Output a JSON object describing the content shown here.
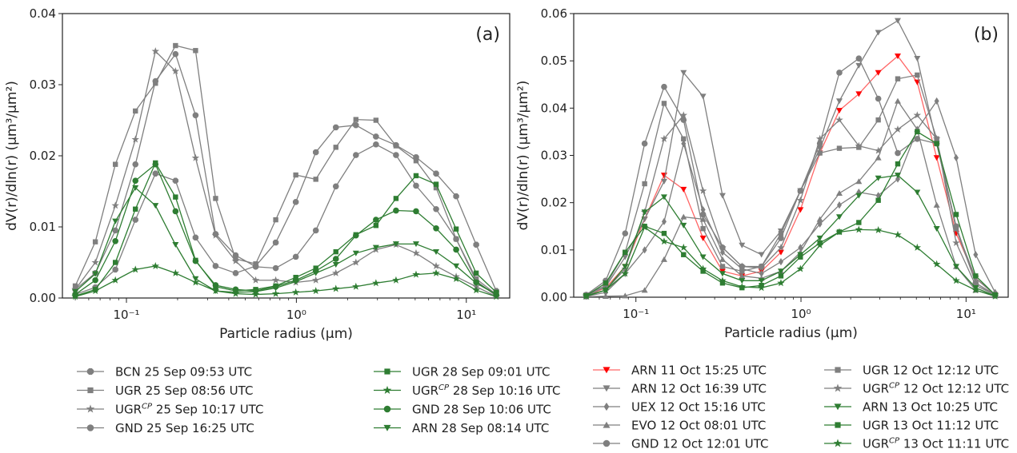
{
  "chart_data": [
    {
      "type": "line",
      "panel_label": "(a)",
      "xlabel": "Particle radius (μm)",
      "ylabel": "dV(r)/dln(r) (μm³/μm²)",
      "xscale": "log",
      "xlim": [
        0.042,
        18
      ],
      "ylim": [
        0,
        0.04
      ],
      "yticks": [
        "0.00",
        "0.01",
        "0.02",
        "0.03",
        "0.04"
      ],
      "xticks": [
        "10⁻¹",
        "10⁰",
        "10¹"
      ],
      "x": [
        0.05,
        0.065604,
        0.086077,
        0.112939,
        0.148184,
        0.194429,
        0.255105,
        0.334716,
        0.439173,
        0.576227,
        0.756052,
        0.991996,
        1.301571,
        1.707757,
        2.240702,
        2.939966,
        3.857452,
        5.06126,
        6.640745,
        8.713145,
        11.432287,
        15.0
      ],
      "legend_columns": 2,
      "legend": [
        [
          "BCN 25 Sep 09:53 UTC",
          "UGR 25 Sep 08:56 UTC",
          "UGR",
          "GND 25 Sep 16:25 UTC"
        ],
        [
          "UGR 28 Sep 09:01 UTC",
          "UGR",
          "GND 28 Sep 10:06 UTC",
          "ARN 28 Sep 08:14 UTC"
        ]
      ],
      "series": [
        {
          "label": "BCN 25 Sep 09:53 UTC",
          "label_sup": "",
          "color": "#7f7f7f",
          "marker": "plus",
          "values": [
            0.0005,
            0.0015,
            0.004,
            0.011,
            0.0175,
            0.0165,
            0.0085,
            0.0045,
            0.0035,
            0.0045,
            0.0078,
            0.0135,
            0.0205,
            0.024,
            0.0243,
            0.0227,
            0.0215,
            0.0198,
            0.0175,
            0.0143,
            0.0075,
            0.001
          ]
        },
        {
          "label": "UGR 25 Sep 08:56 UTC",
          "label_sup": "",
          "color": "#7f7f7f",
          "marker": "square",
          "values": [
            0.0017,
            0.0079,
            0.0188,
            0.0263,
            0.0302,
            0.0355,
            0.0348,
            0.014,
            0.0055,
            0.0048,
            0.011,
            0.0173,
            0.0167,
            0.0212,
            0.0251,
            0.025,
            0.0214,
            0.0193,
            0.0155,
            0.0083,
            0.0027,
            0.0005
          ]
        },
        {
          "label": "UGR",
          "label_sup": "CP",
          "label_rest": " 25 Sep 10:17 UTC",
          "color": "#7f7f7f",
          "marker": "star",
          "values": [
            0.0012,
            0.005,
            0.013,
            0.0223,
            0.0347,
            0.0319,
            0.0197,
            0.0088,
            0.0052,
            0.0025,
            0.0025,
            0.0022,
            0.0025,
            0.0035,
            0.005,
            0.0068,
            0.0075,
            0.0063,
            0.0045,
            0.003,
            0.0016,
            0.0002
          ]
        },
        {
          "label": "GND 25 Sep 16:25 UTC",
          "label_sup": "",
          "color": "#7f7f7f",
          "marker": "circle",
          "values": [
            0.0012,
            0.0035,
            0.0095,
            0.0188,
            0.0305,
            0.0343,
            0.0257,
            0.009,
            0.006,
            0.0044,
            0.0042,
            0.0058,
            0.0095,
            0.0157,
            0.0201,
            0.0216,
            0.0201,
            0.0158,
            0.0125,
            0.0083,
            0.0024,
            0.0003
          ]
        },
        {
          "label": "UGR 28 Sep 09:01 UTC",
          "label_sup": "",
          "color": "#2e7d32",
          "marker": "square",
          "values": [
            0.0003,
            0.0012,
            0.005,
            0.0125,
            0.019,
            0.0142,
            0.0053,
            0.0016,
            0.001,
            0.0012,
            0.0017,
            0.0029,
            0.0042,
            0.0065,
            0.0089,
            0.0102,
            0.014,
            0.0172,
            0.016,
            0.0097,
            0.0035,
            0.0008
          ]
        },
        {
          "label": "UGR",
          "label_sup": "CP",
          "label_rest": " 28 Sep 10:16 UTC",
          "color": "#2e7d32",
          "marker": "star",
          "values": [
            0.0002,
            0.001,
            0.0025,
            0.004,
            0.0045,
            0.0035,
            0.0022,
            0.001,
            0.0006,
            0.0005,
            0.0006,
            0.0008,
            0.001,
            0.0013,
            0.0016,
            0.0021,
            0.0025,
            0.0033,
            0.0035,
            0.0027,
            0.0011,
            0.0002
          ]
        },
        {
          "label": "GND 28 Sep 10:06 UTC",
          "label_sup": "",
          "color": "#2e7d32",
          "marker": "circle",
          "values": [
            0.0005,
            0.0025,
            0.008,
            0.0165,
            0.0188,
            0.0122,
            0.0052,
            0.0018,
            0.0012,
            0.001,
            0.0016,
            0.0025,
            0.0038,
            0.0055,
            0.0088,
            0.011,
            0.0123,
            0.0122,
            0.0098,
            0.0068,
            0.0022,
            0.0005
          ]
        },
        {
          "label": "ARN 28 Sep 08:14 UTC",
          "label_sup": "",
          "color": "#2e7d32",
          "marker": "triangle-down",
          "values": [
            0.0009,
            0.0034,
            0.0108,
            0.0155,
            0.013,
            0.0075,
            0.0027,
            0.001,
            0.0008,
            0.0009,
            0.0014,
            0.0023,
            0.0035,
            0.0047,
            0.0063,
            0.0071,
            0.0076,
            0.0076,
            0.0065,
            0.0045,
            0.0021,
            0.0005
          ]
        }
      ]
    },
    {
      "type": "line",
      "panel_label": "(b)",
      "xlabel": "Particle radius (μm)",
      "ylabel": "dV(r)/dln(r) (μm³/μm²)",
      "xscale": "log",
      "xlim": [
        0.042,
        18
      ],
      "ylim": [
        0,
        0.06
      ],
      "yticks": [
        "0.00",
        "0.01",
        "0.02",
        "0.03",
        "0.04",
        "0.05",
        "0.06"
      ],
      "xticks": [
        "10⁻¹",
        "10⁰",
        "10¹"
      ],
      "x": [
        0.05,
        0.065604,
        0.086077,
        0.112939,
        0.148184,
        0.194429,
        0.255105,
        0.334716,
        0.439173,
        0.576227,
        0.756052,
        0.991996,
        1.301571,
        1.707757,
        2.240702,
        2.939966,
        3.857452,
        5.06126,
        6.640745,
        8.713145,
        11.432287,
        15.0
      ],
      "legend_columns": 2,
      "legend": [
        [
          "ARN 11 Oct 15:25 UTC",
          "ARN 12 Oct 16:39 UTC",
          "UEX 12 Oct 15:16 UTC",
          "EVO 12 Oct 08:01 UTC",
          "GND 12 Oct 12:01 UTC"
        ],
        [
          "UGR 12 Oct 12:12 UTC",
          "UGR",
          "ARN 13 Oct 10:25 UTC",
          "UGR 13 Oct 11:12 UTC",
          "UGR"
        ]
      ],
      "series": [
        {
          "label": "ARN 11 Oct 15:25 UTC",
          "label_sup": "",
          "color": "#ff0000",
          "line": "#ff6666",
          "marker": "triangle-down",
          "values": [
            0.0003,
            0.002,
            0.0065,
            0.0165,
            0.0258,
            0.0228,
            0.0125,
            0.0055,
            0.0045,
            0.0055,
            0.0095,
            0.0185,
            0.0305,
            0.0395,
            0.043,
            0.0475,
            0.051,
            0.0455,
            0.0295,
            0.0135,
            0.004,
            0.0005
          ]
        },
        {
          "label": "ARN 12 Oct 16:39 UTC",
          "label_sup": "",
          "color": "#7f7f7f",
          "marker": "triangle-down",
          "values": [
            0.0003,
            0.0022,
            0.0085,
            0.0165,
            0.0245,
            0.0475,
            0.0425,
            0.0215,
            0.011,
            0.009,
            0.014,
            0.0225,
            0.0315,
            0.0415,
            0.049,
            0.056,
            0.0585,
            0.0505,
            0.0325,
            0.0145,
            0.004,
            0.0005
          ]
        },
        {
          "label": "UEX 12 Oct 15:16 UTC",
          "label_sup": "",
          "color": "#7f7f7f",
          "marker": "diamond",
          "values": [
            0.0002,
            0.001,
            0.005,
            0.01,
            0.016,
            0.0325,
            0.0185,
            0.0095,
            0.006,
            0.005,
            0.0075,
            0.0105,
            0.0155,
            0.0195,
            0.0222,
            0.0215,
            0.025,
            0.0355,
            0.0415,
            0.0295,
            0.009,
            0.001
          ]
        },
        {
          "label": "EVO 12 Oct 08:01 UTC",
          "label_sup": "",
          "color": "#7f7f7f",
          "marker": "triangle",
          "values": [
            0.0001,
            0.0002,
            0.0003,
            0.0015,
            0.008,
            0.017,
            0.0165,
            0.008,
            0.0045,
            0.004,
            0.0055,
            0.0095,
            0.0165,
            0.022,
            0.0245,
            0.0295,
            0.0415,
            0.0355,
            0.0195,
            0.0065,
            0.0015,
            0.0003
          ]
        },
        {
          "label": "GND 12 Oct 12:01 UTC",
          "label_sup": "",
          "color": "#7f7f7f",
          "marker": "circle",
          "values": [
            0.0005,
            0.0035,
            0.0135,
            0.0325,
            0.0445,
            0.0375,
            0.0175,
            0.0105,
            0.0065,
            0.0065,
            0.0125,
            0.0225,
            0.0325,
            0.0475,
            0.0505,
            0.042,
            0.0305,
            0.0335,
            0.0325,
            0.015,
            0.003,
            0.0005
          ]
        },
        {
          "label": "UGR 12 Oct 12:12 UTC",
          "label_sup": "",
          "color": "#7f7f7f",
          "marker": "square",
          "values": [
            0.0005,
            0.0025,
            0.0095,
            0.024,
            0.041,
            0.0335,
            0.0145,
            0.0065,
            0.0055,
            0.0065,
            0.0135,
            0.0225,
            0.0305,
            0.0315,
            0.0317,
            0.0375,
            0.0462,
            0.047,
            0.0335,
            0.0145,
            0.003,
            0.0005
          ]
        },
        {
          "label": "UGR",
          "label_sup": "CP",
          "label_rest": "  12 Oct 12:12 UTC",
          "color": "#7f7f7f",
          "marker": "star",
          "values": [
            0.0003,
            0.0015,
            0.006,
            0.018,
            0.0335,
            0.0385,
            0.0225,
            0.0105,
            0.0065,
            0.0062,
            0.0105,
            0.0205,
            0.0335,
            0.0375,
            0.032,
            0.031,
            0.0355,
            0.0385,
            0.0335,
            0.0115,
            0.0025,
            0.0005
          ]
        },
        {
          "label": "ARN 13 Oct 10:25 UTC",
          "label_sup": "",
          "color": "#2e7d32",
          "marker": "triangle-down",
          "values": [
            0.0003,
            0.0015,
            0.0065,
            0.018,
            0.0212,
            0.0152,
            0.0085,
            0.005,
            0.0035,
            0.0035,
            0.0055,
            0.009,
            0.0125,
            0.017,
            0.0215,
            0.0252,
            0.0258,
            0.0222,
            0.0145,
            0.0065,
            0.002,
            0.0003
          ]
        },
        {
          "label": "UGR 13 Oct 11:12 UTC",
          "label_sup": "",
          "color": "#2e7d32",
          "marker": "square",
          "values": [
            0.0003,
            0.003,
            0.0095,
            0.015,
            0.0135,
            0.009,
            0.0055,
            0.003,
            0.002,
            0.0025,
            0.0045,
            0.0085,
            0.0115,
            0.0138,
            0.0158,
            0.0205,
            0.0282,
            0.035,
            0.0325,
            0.0175,
            0.0045,
            0.0005
          ]
        },
        {
          "label": "UGR",
          "label_sup": "CP",
          "label_rest": "  13 Oct 11:11 UTC",
          "color": "#2e7d32",
          "marker": "star",
          "values": [
            0.0002,
            0.0015,
            0.005,
            0.0148,
            0.0118,
            0.0105,
            0.006,
            0.0035,
            0.0022,
            0.002,
            0.003,
            0.006,
            0.011,
            0.0138,
            0.0143,
            0.0142,
            0.0132,
            0.0105,
            0.007,
            0.0035,
            0.0015,
            0.0002
          ]
        }
      ]
    }
  ]
}
